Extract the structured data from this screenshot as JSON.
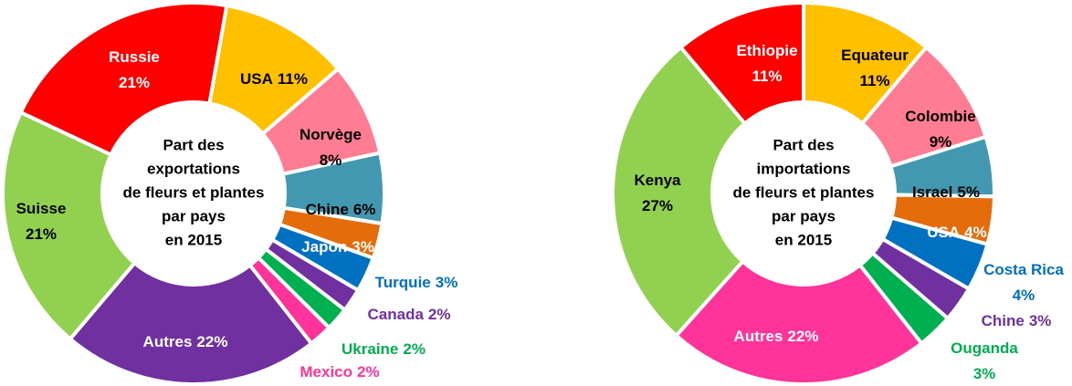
{
  "chart_data": [
    {
      "type": "donut",
      "title": [
        "Part des",
        "exportations",
        "de fleurs et plantes",
        "par pays",
        "en 2015"
      ],
      "categories": [
        "USA",
        "Norvège",
        "Chine",
        "Japon",
        "Turquie",
        "Canada",
        "Ukraine",
        "Mexico",
        "Autres",
        "Suisse",
        "Russie"
      ],
      "values": [
        11,
        8,
        6,
        3,
        3,
        2,
        2,
        2,
        22,
        21,
        21
      ],
      "value_labels": [
        "11%",
        "8%",
        "6%",
        "3%",
        "3%",
        "2%",
        "2%",
        "2%",
        "22%",
        "21%",
        "21%"
      ],
      "colors": [
        "#ffc000",
        "#ff7c93",
        "#4198b0",
        "#e46c0a",
        "#0070c0",
        "#7030a0",
        "#00b050",
        "#ff3399",
        "#7030a0",
        "#92d050",
        "#ff0000"
      ]
    },
    {
      "type": "donut",
      "title": [
        "Part des",
        "importations",
        "de fleurs et plantes",
        "par pays",
        "en 2015"
      ],
      "categories": [
        "Equateur",
        "Colombie",
        "Israel",
        "USA",
        "Costa Rica",
        "Chine",
        "Ouganda",
        "Autres",
        "Kenya",
        "Ethiopie"
      ],
      "values": [
        11,
        9,
        5,
        4,
        4,
        3,
        3,
        22,
        27,
        11
      ],
      "value_labels": [
        "11%",
        "9%",
        "5%",
        "4%",
        "4%",
        "3%",
        "3%",
        "22%",
        "27%",
        "11%"
      ],
      "colors": [
        "#ffc000",
        "#ff7c93",
        "#4198b0",
        "#e46c0a",
        "#0070c0",
        "#7030a0",
        "#00b050",
        "#ff3399",
        "#92d050",
        "#ff0000"
      ]
    }
  ]
}
